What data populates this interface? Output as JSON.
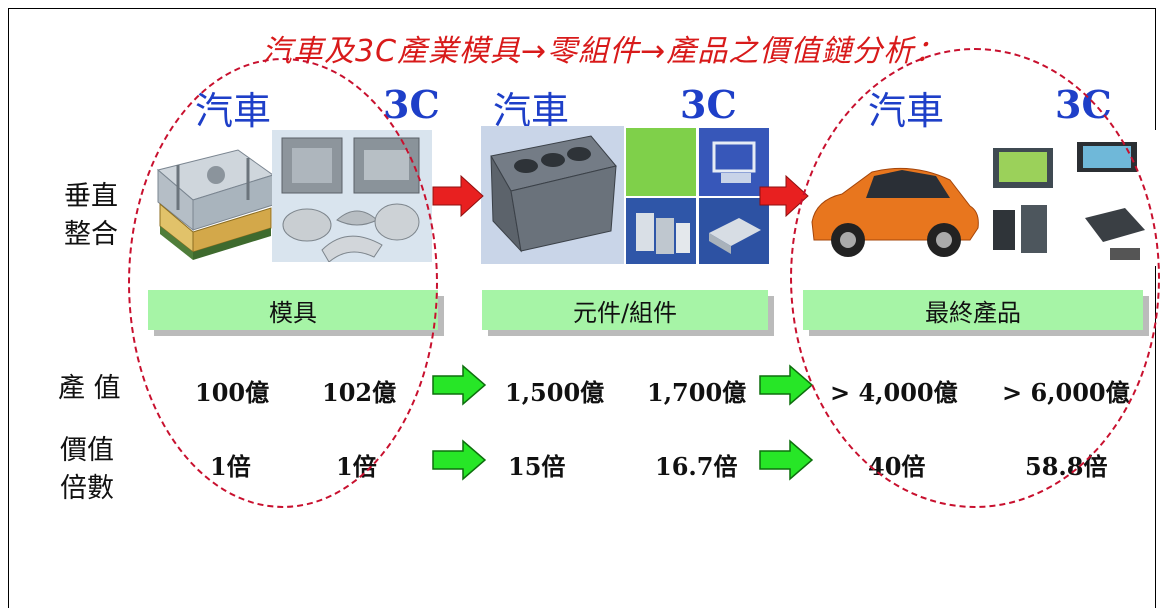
{
  "title": "汽車及3C產業模具→零組件→產品之價值鏈分析：",
  "columns": [
    {
      "left": "汽車",
      "right": "3C",
      "stage": "模具"
    },
    {
      "left": "汽車",
      "right": "3C",
      "stage": "元件/組件"
    },
    {
      "left": "汽車",
      "right": "3C",
      "stage": "最終產品"
    }
  ],
  "rows": {
    "integration": "垂直\n整合",
    "output": "產 值",
    "multiple": "價值\n倍數"
  },
  "values": {
    "output": [
      "100億",
      "102億",
      "1,500億",
      "1,700億",
      "> 4,000億",
      "> 6,000億"
    ],
    "multiple": [
      "1倍",
      "1倍",
      "15倍",
      "16.7倍",
      "40倍",
      "58.8倍"
    ]
  },
  "colors": {
    "title": "#d81a1a",
    "heading": "#1e3fc8",
    "stage_bar": "#a6f4a6",
    "red_arrow": "#e82020",
    "green_arrow": "#27e627",
    "dashed_ring": "#c8102e"
  }
}
